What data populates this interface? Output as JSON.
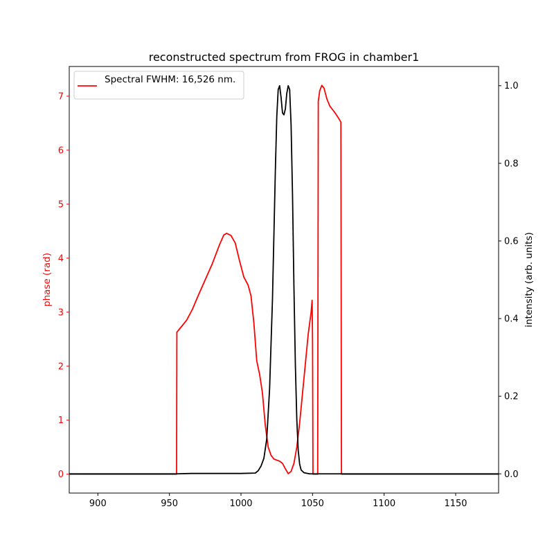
{
  "chart_data": {
    "type": "line",
    "title": "reconstructed spectrum from FROG in chamber1",
    "xlabel": "",
    "ylabel_left": "phase (rad)",
    "ylabel_right": "intensity (arb. units)",
    "xlim": [
      880,
      1180
    ],
    "ylim_left": [
      -0.35,
      7.55
    ],
    "ylim_right": [
      -0.0495,
      1.0495
    ],
    "x_ticks": [
      900,
      950,
      1000,
      1050,
      1100,
      1150
    ],
    "y_left_ticks": [
      0,
      1,
      2,
      3,
      4,
      5,
      6,
      7
    ],
    "y_right_ticks": [
      "0.0",
      "0.2",
      "0.4",
      "0.6",
      "0.8",
      "1.0"
    ],
    "legend": {
      "position": "top-left",
      "entries": [
        "Spectral FWHM: 16,526 nm."
      ]
    },
    "grid": false,
    "colors": {
      "phase": "#ff0000",
      "intensity": "#000000",
      "left_axis_ticks": "#ff0000",
      "right_axis_ticks": "#000000"
    },
    "series": [
      {
        "name": "Spectral FWHM: 16,526 nm.",
        "axis": "left",
        "color": "#ff0000",
        "points": [
          [
            880,
            0
          ],
          [
            955,
            0
          ],
          [
            955.2,
            2.63
          ],
          [
            958,
            2.72
          ],
          [
            962,
            2.85
          ],
          [
            966,
            3.05
          ],
          [
            970,
            3.3
          ],
          [
            975,
            3.6
          ],
          [
            980,
            3.9
          ],
          [
            985,
            4.25
          ],
          [
            988,
            4.43
          ],
          [
            990,
            4.46
          ],
          [
            993,
            4.42
          ],
          [
            996,
            4.28
          ],
          [
            999,
            3.95
          ],
          [
            1002,
            3.65
          ],
          [
            1005,
            3.5
          ],
          [
            1007,
            3.3
          ],
          [
            1009,
            2.8
          ],
          [
            1011,
            2.1
          ],
          [
            1013,
            1.85
          ],
          [
            1015,
            1.5
          ],
          [
            1017,
            0.9
          ],
          [
            1019,
            0.5
          ],
          [
            1021,
            0.35
          ],
          [
            1023,
            0.28
          ],
          [
            1025,
            0.26
          ],
          [
            1027,
            0.24
          ],
          [
            1029,
            0.2
          ],
          [
            1031,
            0.1
          ],
          [
            1033,
            0.01
          ],
          [
            1035,
            0.05
          ],
          [
            1037,
            0.2
          ],
          [
            1039,
            0.5
          ],
          [
            1041,
            0.95
          ],
          [
            1043,
            1.5
          ],
          [
            1045,
            2.05
          ],
          [
            1047,
            2.6
          ],
          [
            1049,
            3.0
          ],
          [
            1049.7,
            3.22
          ],
          [
            1050,
            2.5
          ],
          [
            1050.3,
            0
          ],
          [
            1053.6,
            0
          ],
          [
            1054,
            6.9
          ],
          [
            1055,
            7.1
          ],
          [
            1056.5,
            7.2
          ],
          [
            1058,
            7.15
          ],
          [
            1060,
            6.95
          ],
          [
            1062,
            6.82
          ],
          [
            1064,
            6.75
          ],
          [
            1066,
            6.68
          ],
          [
            1068,
            6.6
          ],
          [
            1069.8,
            6.52
          ],
          [
            1070.2,
            0
          ],
          [
            1180,
            0
          ]
        ]
      },
      {
        "name": "intensity",
        "axis": "right",
        "color": "#000000",
        "points": [
          [
            880,
            0
          ],
          [
            955,
            0
          ],
          [
            965,
            0.001
          ],
          [
            980,
            0.001
          ],
          [
            1000,
            0.001
          ],
          [
            1010,
            0.002
          ],
          [
            1012,
            0.008
          ],
          [
            1014,
            0.02
          ],
          [
            1016,
            0.04
          ],
          [
            1018,
            0.09
          ],
          [
            1020,
            0.22
          ],
          [
            1022,
            0.45
          ],
          [
            1024,
            0.78
          ],
          [
            1025,
            0.92
          ],
          [
            1026,
            0.99
          ],
          [
            1027,
            1.0
          ],
          [
            1028,
            0.97
          ],
          [
            1029,
            0.93
          ],
          [
            1030,
            0.925
          ],
          [
            1031,
            0.94
          ],
          [
            1032,
            0.98
          ],
          [
            1033,
            1.0
          ],
          [
            1034,
            0.99
          ],
          [
            1035,
            0.9
          ],
          [
            1036,
            0.72
          ],
          [
            1037,
            0.48
          ],
          [
            1038,
            0.28
          ],
          [
            1039,
            0.14
          ],
          [
            1040,
            0.06
          ],
          [
            1041,
            0.025
          ],
          [
            1042,
            0.01
          ],
          [
            1044,
            0.003
          ],
          [
            1048,
            0.0
          ],
          [
            1180,
            0
          ]
        ]
      }
    ]
  }
}
